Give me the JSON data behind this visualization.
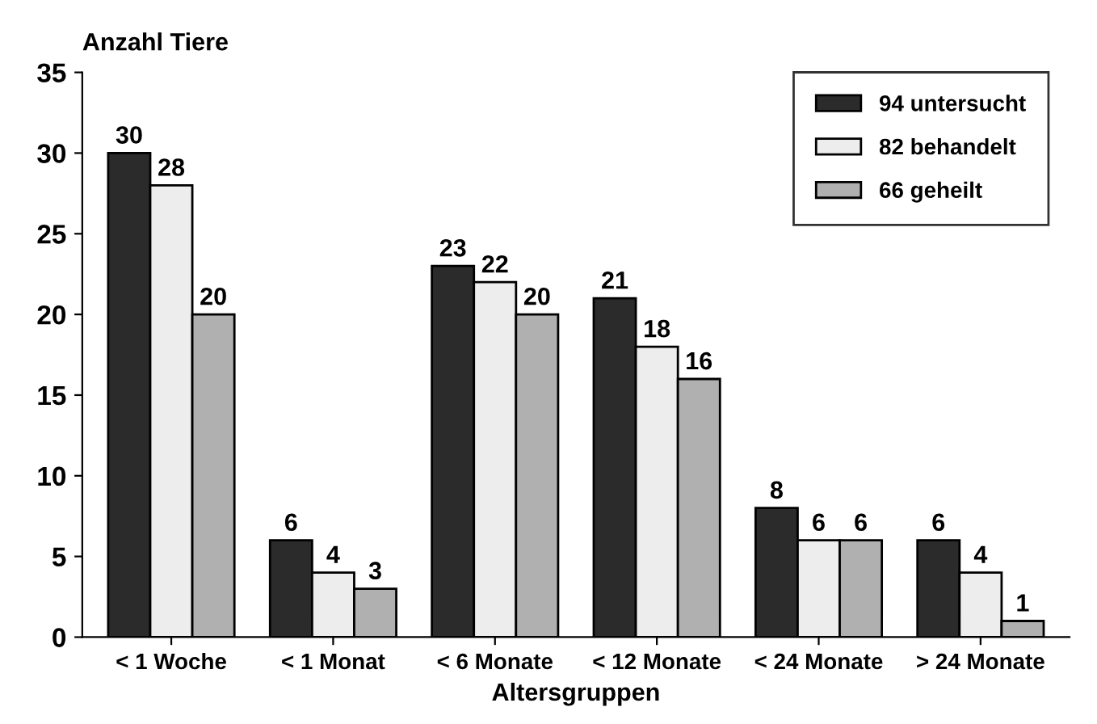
{
  "chart_data": {
    "type": "bar",
    "ylabel": "Anzahl Tiere",
    "xlabel": "Altersgruppen",
    "categories": [
      "< 1 Woche",
      "< 1 Monat",
      "< 6 Monate",
      "< 12 Monate",
      "< 24 Monate",
      "> 24 Monate"
    ],
    "series": [
      {
        "name": "94 untersucht",
        "color": "#2b2b2b",
        "values": [
          30,
          6,
          23,
          21,
          8,
          6
        ]
      },
      {
        "name": "82 behandelt",
        "color": "#ededed",
        "values": [
          28,
          4,
          22,
          18,
          6,
          4
        ]
      },
      {
        "name": "66 geheilt",
        "color": "#b0b0b0",
        "values": [
          20,
          3,
          20,
          16,
          6,
          1
        ]
      }
    ],
    "ylim": [
      0,
      35
    ],
    "yticks": [
      0,
      5,
      10,
      15,
      20,
      25,
      30,
      35
    ],
    "grid": false,
    "legend": "top right",
    "data_labels": true
  }
}
